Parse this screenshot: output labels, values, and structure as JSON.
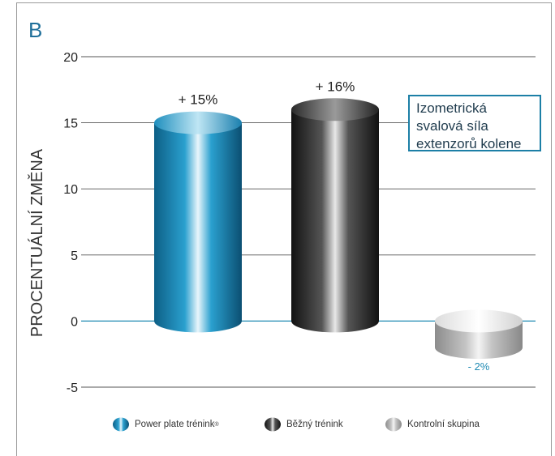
{
  "panel_label": "B",
  "annotation_lines": [
    "Izometrická",
    "svalová síla",
    "extenzorů kolene"
  ],
  "colors": {
    "power_plate": "#1b86b5",
    "bezny": "#3a3a3a",
    "kontrolni": "#b5b5b5",
    "zero_line": "#1f8ab3",
    "grid": "#555555",
    "label_neg": "#1f8ab3"
  },
  "chart_data": {
    "type": "bar",
    "title": "",
    "xlabel": "",
    "ylabel": "PROCENTUÁLNÍ ZMĚNA",
    "ylim": [
      -5,
      20
    ],
    "yticks": [
      20,
      15,
      10,
      5,
      0,
      -5
    ],
    "grid": true,
    "legend_position": "bottom",
    "series": [
      {
        "name": "Power plate trénink®",
        "value": 15,
        "label": "+ 15%"
      },
      {
        "name": "Běžný trénink",
        "value": 16,
        "label": "+ 16%"
      },
      {
        "name": "Kontrolní skupina",
        "value": -2,
        "label": "- 2%"
      }
    ]
  },
  "legend": [
    {
      "label": "Power plate trénink",
      "sup": "®"
    },
    {
      "label": "Běžný trénink",
      "sup": ""
    },
    {
      "label": "Kontrolní skupina",
      "sup": ""
    }
  ]
}
